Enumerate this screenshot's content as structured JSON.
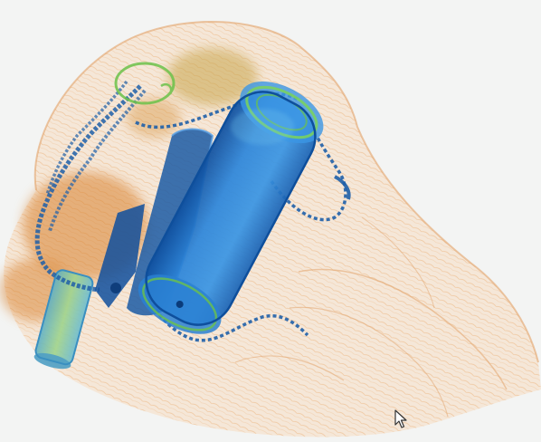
{
  "viewer": {
    "background_color": "#f3f4f3"
  },
  "scan": {
    "palette": {
      "organic": "#e8a05a",
      "organic_dense": "#d9822f",
      "inorganic": "#7cc25a",
      "metal": "#1f72c8",
      "metal_dense": "#0f4f9e"
    },
    "objects": [
      "bag-outline",
      "metal-cylinder",
      "metal-chain",
      "clip-mechanism",
      "small-cylinder",
      "organic-mass"
    ]
  },
  "cursor": {
    "icon": "arrow-pointer-icon"
  }
}
